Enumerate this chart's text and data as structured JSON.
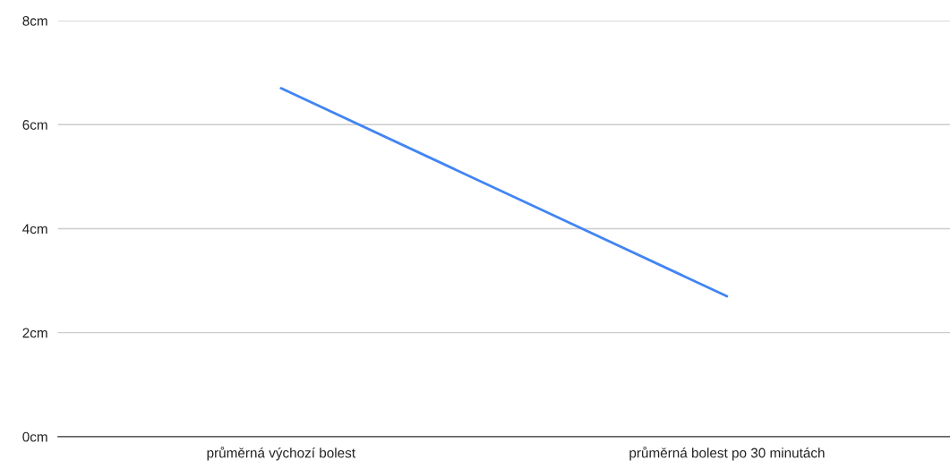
{
  "chart_data": {
    "type": "line",
    "categories": [
      "průměrná výchozí bolest",
      "průměrná bolest po 30 minutách"
    ],
    "series": [
      {
        "color": "#4285f4",
        "values": [
          6.7,
          2.7
        ]
      }
    ],
    "ylim": [
      0,
      8
    ],
    "yticks": [
      {
        "value": 0,
        "label": "0cm"
      },
      {
        "value": 2,
        "label": "2cm"
      },
      {
        "value": 4,
        "label": "4cm"
      },
      {
        "value": 6,
        "label": "6cm"
      },
      {
        "value": 8,
        "label": "8cm"
      }
    ],
    "grid": "y",
    "marker": "none",
    "line_style": "solid"
  }
}
